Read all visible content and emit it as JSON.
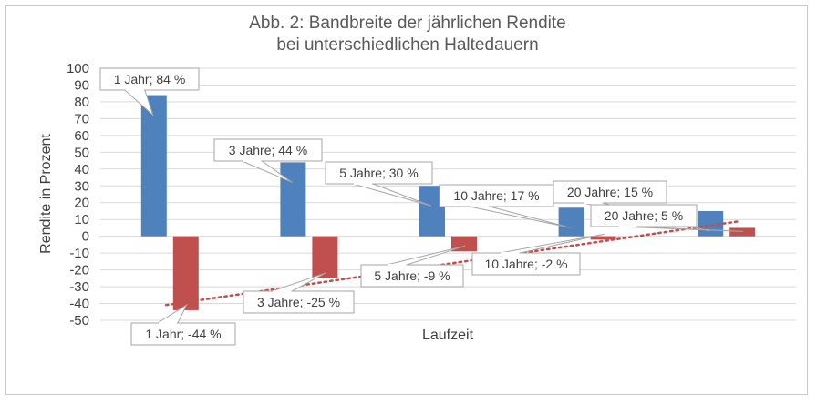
{
  "chart_data": {
    "type": "bar",
    "title_lines": [
      "Abb. 2: Bandbreite der jährlichen Rendite",
      "bei unterschiedlichen Haltedauern"
    ],
    "xlabel": "Laufzeit",
    "ylabel": "Rendite in Prozent",
    "ylim": [
      -50,
      100
    ],
    "ytick_step": 10,
    "grid": true,
    "categories": [
      "1 Jahr",
      "3 Jahre",
      "5 Jahre",
      "10 Jahre",
      "20 Jahre"
    ],
    "series": [
      {
        "color": "#4f81bd",
        "values": [
          84,
          44,
          30,
          17,
          15
        ]
      },
      {
        "color": "#c0504d",
        "values": [
          -44,
          -25,
          -9,
          -2,
          5
        ]
      }
    ],
    "data_labels": [
      [
        "1 Jahr; 84 %",
        "3 Jahre; 44 %",
        "5 Jahre; 30 %",
        "10 Jahre; 17 %",
        "20 Jahre; 15 %"
      ],
      [
        "1 Jahr; -44 %",
        "3 Jahre; -25 %",
        "5 Jahre; -9 %",
        "10 Jahre; -2 %",
        "20 Jahre; 5 %"
      ]
    ],
    "trendline": {
      "series_index": 1,
      "type": "linear",
      "style": "dotted",
      "color": "#c0504d"
    }
  }
}
